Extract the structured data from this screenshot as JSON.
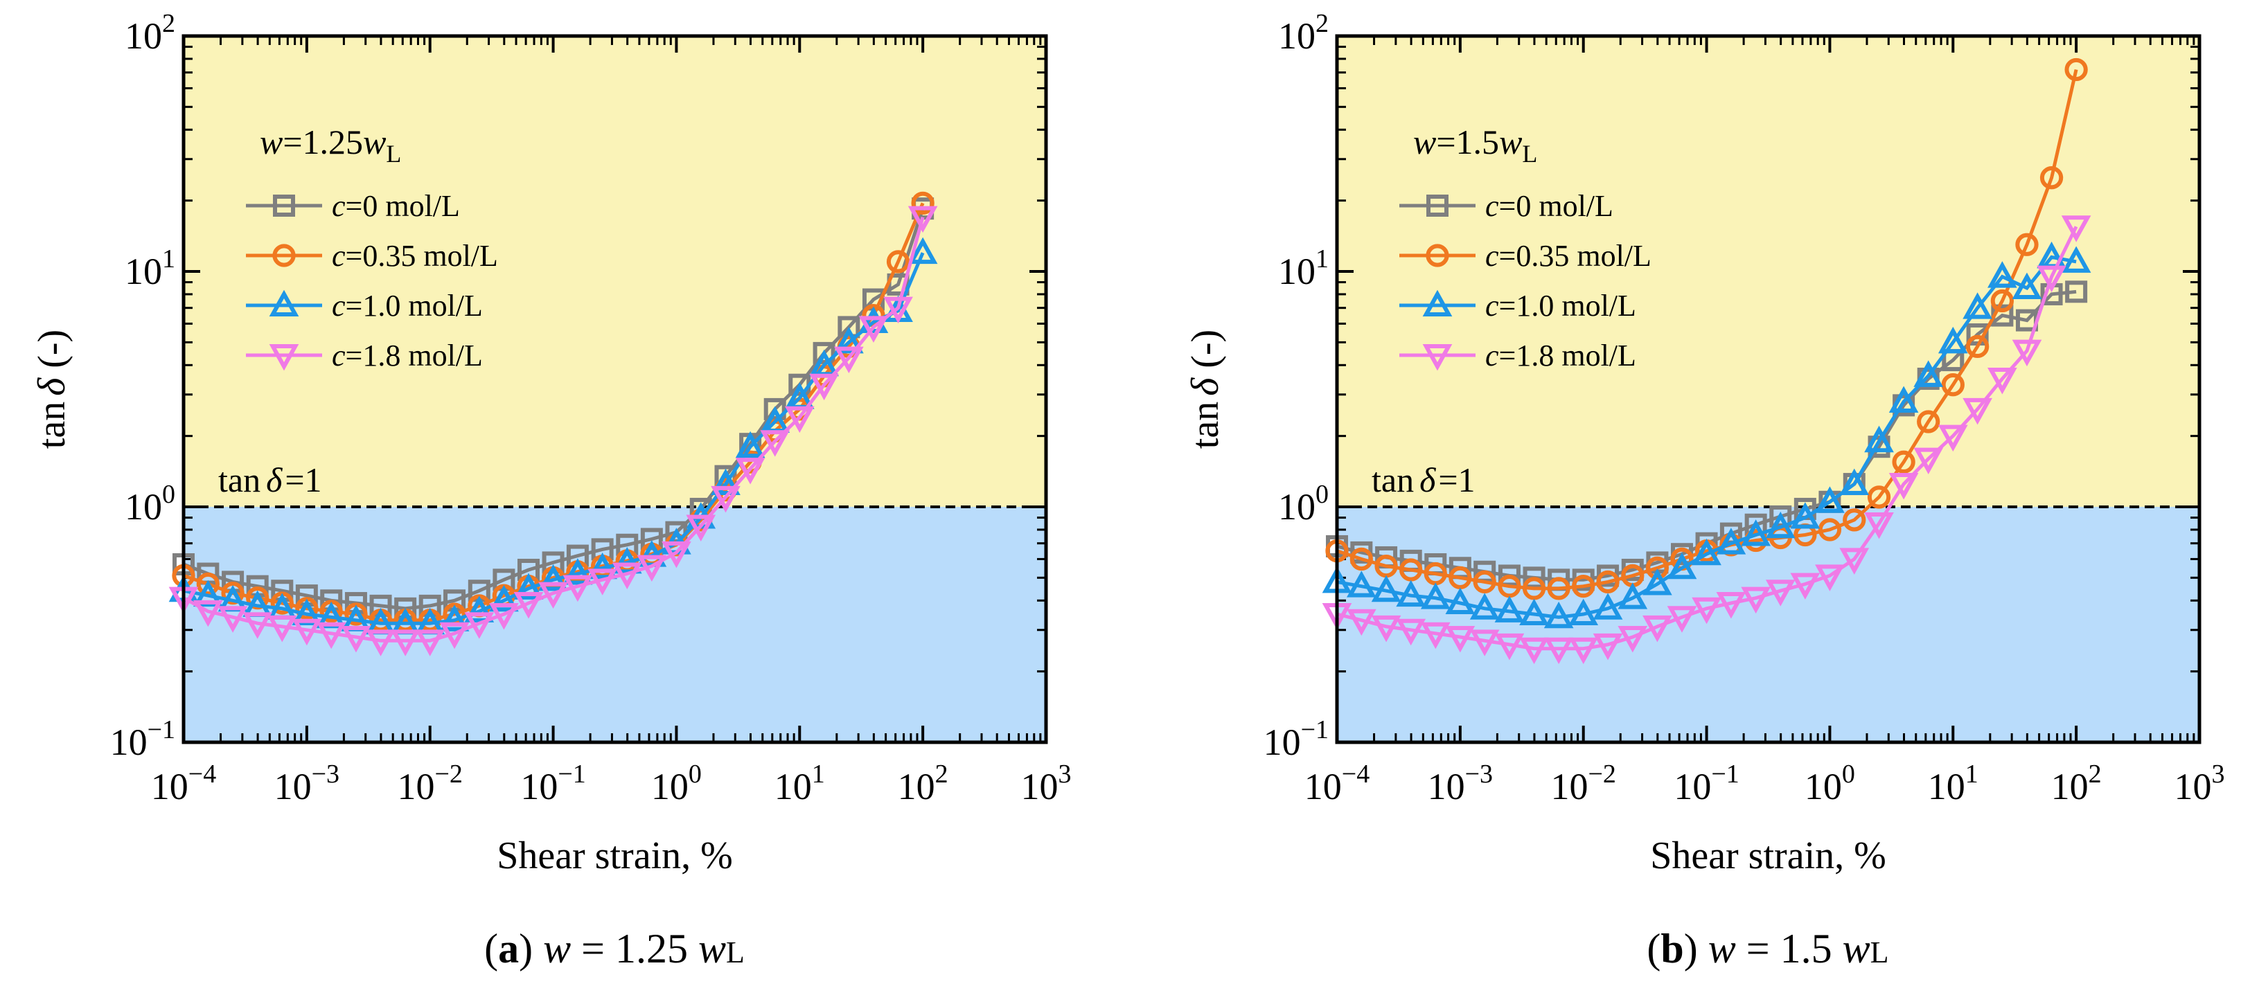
{
  "chart_data": [
    {
      "type": "line",
      "panel": "a",
      "caption_letter": "(a)",
      "caption_var": "w",
      "caption_eq": " = 1.25 ",
      "caption_wl": "w",
      "caption_sub": "L",
      "xscale": "log",
      "yscale": "log",
      "xlim": [
        0.0001,
        1000
      ],
      "ylim": [
        0.1,
        100
      ],
      "xlabel": "Shear strain, %",
      "ylabel_main": "tan",
      "ylabel_delta": "δ",
      "ylabel_suffix": " (-)",
      "xticks": [
        "10",
        "10",
        "10",
        "10",
        "10",
        "10",
        "10",
        "10"
      ],
      "xtick_exponents": [
        "−4",
        "−3",
        "−2",
        "−1",
        "0",
        "1",
        "2",
        "3"
      ],
      "yticks": [
        "10",
        "10",
        "10",
        "10"
      ],
      "ytick_exponents": [
        "−1",
        "0",
        "1",
        "2"
      ],
      "threshold": {
        "y": 1,
        "label_main": "tan",
        "label_delta": "δ",
        "label_suffix": "=1"
      },
      "regions": {
        "upper_color": "#faf3b8",
        "lower_color": "#b9dcfb"
      },
      "legend": {
        "title_var": "w",
        "title_eq": "=1.25",
        "title_wl": "w",
        "title_sub": "L",
        "entries": [
          {
            "var": "c",
            "text": "=0 mol/L"
          },
          {
            "var": "c",
            "text": "=0.35 mol/L"
          },
          {
            "var": "c",
            "text": "=1.0 mol/L"
          },
          {
            "var": "c",
            "text": "=1.8 mol/L"
          }
        ]
      },
      "series": [
        {
          "name": "c=0 mol/L",
          "color": "#7f7f7f",
          "marker": "square",
          "x": [
            0.0001,
            0.000158,
            0.000251,
            0.000398,
            0.000631,
            0.001,
            0.00158,
            0.00251,
            0.00398,
            0.00631,
            0.01,
            0.0158,
            0.0251,
            0.0398,
            0.0631,
            0.1,
            0.158,
            0.251,
            0.398,
            0.631,
            1.0,
            1.58,
            2.51,
            3.98,
            6.31,
            10,
            15.8,
            25.1,
            39.8,
            63.1,
            100
          ],
          "y": [
            0.57,
            0.52,
            0.48,
            0.46,
            0.44,
            0.42,
            0.4,
            0.39,
            0.38,
            0.37,
            0.38,
            0.4,
            0.44,
            0.49,
            0.54,
            0.58,
            0.62,
            0.66,
            0.69,
            0.73,
            0.78,
            0.98,
            1.35,
            1.85,
            2.6,
            3.3,
            4.5,
            5.8,
            7.6,
            8.8,
            18.5
          ]
        },
        {
          "name": "c=0.35 mol/L",
          "color": "#f07820",
          "marker": "circle",
          "x": [
            0.0001,
            0.000158,
            0.000251,
            0.000398,
            0.000631,
            0.001,
            0.00158,
            0.00251,
            0.00398,
            0.00631,
            0.01,
            0.0158,
            0.0251,
            0.0398,
            0.0631,
            0.1,
            0.158,
            0.251,
            0.398,
            0.631,
            1.0,
            1.58,
            2.51,
            3.98,
            6.31,
            10,
            15.8,
            25.1,
            39.8,
            63.1,
            100
          ],
          "y": [
            0.51,
            0.47,
            0.43,
            0.41,
            0.39,
            0.37,
            0.36,
            0.35,
            0.33,
            0.33,
            0.33,
            0.35,
            0.38,
            0.42,
            0.46,
            0.5,
            0.53,
            0.56,
            0.59,
            0.63,
            0.69,
            0.88,
            1.18,
            1.55,
            2.1,
            2.6,
            3.6,
            4.8,
            6.5,
            11.0,
            19.5
          ]
        },
        {
          "name": "c=1.0 mol/L",
          "color": "#1e96e6",
          "marker": "triangle-up",
          "x": [
            0.0001,
            0.000158,
            0.000251,
            0.000398,
            0.000631,
            0.001,
            0.00158,
            0.00251,
            0.00398,
            0.00631,
            0.01,
            0.0158,
            0.0251,
            0.0398,
            0.0631,
            0.1,
            0.158,
            0.251,
            0.398,
            0.631,
            1.0,
            1.58,
            2.51,
            3.98,
            6.31,
            10,
            15.8,
            25.1,
            39.8,
            63.1,
            100
          ],
          "y": [
            0.44,
            0.42,
            0.4,
            0.38,
            0.37,
            0.35,
            0.34,
            0.33,
            0.32,
            0.32,
            0.32,
            0.33,
            0.36,
            0.4,
            0.45,
            0.49,
            0.52,
            0.55,
            0.58,
            0.62,
            0.7,
            0.9,
            1.25,
            1.8,
            2.3,
            2.9,
            4.0,
            5.0,
            6.1,
            6.8,
            12.0
          ]
        },
        {
          "name": "c=1.8 mol/L",
          "color": "#f07ae6",
          "marker": "triangle-down",
          "x": [
            0.0001,
            0.000158,
            0.000251,
            0.000398,
            0.000631,
            0.001,
            0.00158,
            0.00251,
            0.00398,
            0.00631,
            0.01,
            0.0158,
            0.0251,
            0.0398,
            0.0631,
            0.1,
            0.158,
            0.251,
            0.398,
            0.631,
            1.0,
            1.58,
            2.51,
            3.98,
            6.31,
            10,
            15.8,
            25.1,
            39.8,
            63.1,
            100
          ],
          "y": [
            0.41,
            0.36,
            0.34,
            0.32,
            0.31,
            0.3,
            0.29,
            0.28,
            0.27,
            0.27,
            0.27,
            0.29,
            0.32,
            0.35,
            0.39,
            0.43,
            0.46,
            0.49,
            0.52,
            0.56,
            0.64,
            0.83,
            1.1,
            1.45,
            1.9,
            2.4,
            3.3,
            4.3,
            5.8,
            7.0,
            17.0
          ]
        }
      ]
    },
    {
      "type": "line",
      "panel": "b",
      "caption_letter": "(b)",
      "caption_var": "w",
      "caption_eq": " = 1.5 ",
      "caption_wl": "w",
      "caption_sub": "L",
      "xscale": "log",
      "yscale": "log",
      "xlim": [
        0.0001,
        1000
      ],
      "ylim": [
        0.1,
        100
      ],
      "xlabel": "Shear strain, %",
      "ylabel_main": "tan",
      "ylabel_delta": "δ",
      "ylabel_suffix": " (-)",
      "xticks": [
        "10",
        "10",
        "10",
        "10",
        "10",
        "10",
        "10",
        "10"
      ],
      "xtick_exponents": [
        "−4",
        "−3",
        "−2",
        "−1",
        "0",
        "1",
        "2",
        "3"
      ],
      "yticks": [
        "10",
        "10",
        "10",
        "10"
      ],
      "ytick_exponents": [
        "−1",
        "0",
        "1",
        "2"
      ],
      "threshold": {
        "y": 1,
        "label_main": "tan",
        "label_delta": "δ",
        "label_suffix": "=1"
      },
      "regions": {
        "upper_color": "#faf3b8",
        "lower_color": "#b9dcfb"
      },
      "legend": {
        "title_var": "w",
        "title_eq": "=1.5",
        "title_wl": "w",
        "title_sub": "L",
        "entries": [
          {
            "var": "c",
            "text": "=0 mol/L"
          },
          {
            "var": "c",
            "text": "=0.35 mol/L"
          },
          {
            "var": "c",
            "text": "=1.0 mol/L"
          },
          {
            "var": "c",
            "text": "=1.8 mol/L"
          }
        ]
      },
      "series": [
        {
          "name": "c=0 mol/L",
          "color": "#7f7f7f",
          "marker": "square",
          "x": [
            0.0001,
            0.000158,
            0.000251,
            0.000398,
            0.000631,
            0.001,
            0.00158,
            0.00251,
            0.00398,
            0.00631,
            0.01,
            0.0158,
            0.0251,
            0.0398,
            0.0631,
            0.1,
            0.158,
            0.251,
            0.398,
            0.631,
            1.0,
            1.58,
            2.51,
            3.98,
            6.31,
            10,
            15.8,
            25.1,
            39.8,
            63.1,
            100
          ],
          "y": [
            0.68,
            0.64,
            0.61,
            0.59,
            0.57,
            0.55,
            0.53,
            0.51,
            0.5,
            0.49,
            0.49,
            0.51,
            0.54,
            0.58,
            0.63,
            0.7,
            0.77,
            0.84,
            0.91,
            0.98,
            1.05,
            1.25,
            1.8,
            2.7,
            3.5,
            4.2,
            5.4,
            6.5,
            6.2,
            8.0,
            8.2
          ]
        },
        {
          "name": "c=0.35 mol/L",
          "color": "#f07820",
          "marker": "circle",
          "x": [
            0.0001,
            0.000158,
            0.000251,
            0.000398,
            0.000631,
            0.001,
            0.00158,
            0.00251,
            0.00398,
            0.00631,
            0.01,
            0.0158,
            0.0251,
            0.0398,
            0.0631,
            0.1,
            0.158,
            0.251,
            0.398,
            0.631,
            1.0,
            1.58,
            2.51,
            3.98,
            6.31,
            10,
            15.8,
            25.1,
            39.8,
            63.1,
            100
          ],
          "y": [
            0.65,
            0.6,
            0.56,
            0.54,
            0.52,
            0.5,
            0.48,
            0.46,
            0.45,
            0.45,
            0.46,
            0.48,
            0.51,
            0.55,
            0.6,
            0.65,
            0.69,
            0.72,
            0.74,
            0.76,
            0.8,
            0.88,
            1.1,
            1.55,
            2.3,
            3.3,
            4.8,
            7.5,
            13.0,
            25.0,
            72.0
          ]
        },
        {
          "name": "c=1.0 mol/L",
          "color": "#1e96e6",
          "marker": "triangle-up",
          "x": [
            0.0001,
            0.000158,
            0.000251,
            0.000398,
            0.000631,
            0.001,
            0.00158,
            0.00251,
            0.00398,
            0.00631,
            0.01,
            0.0158,
            0.0251,
            0.0398,
            0.0631,
            0.1,
            0.158,
            0.251,
            0.398,
            0.631,
            1.0,
            1.58,
            2.51,
            3.98,
            6.31,
            10,
            15.8,
            25.1,
            39.8,
            63.1,
            100
          ],
          "y": [
            0.48,
            0.46,
            0.44,
            0.42,
            0.41,
            0.39,
            0.37,
            0.36,
            0.35,
            0.34,
            0.35,
            0.37,
            0.41,
            0.47,
            0.55,
            0.63,
            0.7,
            0.76,
            0.82,
            0.9,
            1.05,
            1.25,
            1.9,
            2.8,
            3.6,
            5.0,
            7.0,
            9.5,
            8.5,
            11.5,
            11.0
          ]
        },
        {
          "name": "c=1.8 mol/L",
          "color": "#f07ae6",
          "marker": "triangle-down",
          "x": [
            0.0001,
            0.000158,
            0.000251,
            0.000398,
            0.000631,
            0.001,
            0.00158,
            0.00251,
            0.00398,
            0.00631,
            0.01,
            0.0158,
            0.0251,
            0.0398,
            0.0631,
            0.1,
            0.158,
            0.251,
            0.398,
            0.631,
            1.0,
            1.58,
            2.51,
            3.98,
            6.31,
            10,
            15.8,
            25.1,
            39.8,
            63.1,
            100
          ],
          "y": [
            0.35,
            0.33,
            0.31,
            0.3,
            0.29,
            0.28,
            0.27,
            0.26,
            0.25,
            0.25,
            0.25,
            0.26,
            0.28,
            0.31,
            0.34,
            0.37,
            0.39,
            0.41,
            0.44,
            0.47,
            0.51,
            0.6,
            0.85,
            1.25,
            1.6,
            2.0,
            2.6,
            3.5,
            4.6,
            9.5,
            15.5
          ]
        }
      ]
    }
  ]
}
